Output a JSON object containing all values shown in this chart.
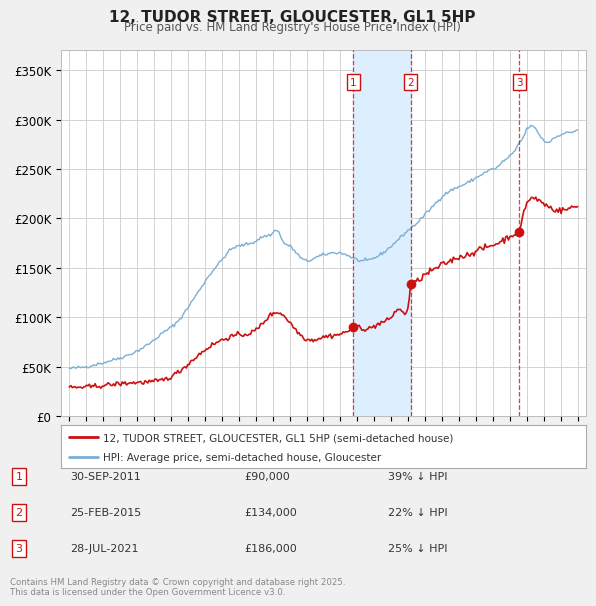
{
  "title": "12, TUDOR STREET, GLOUCESTER, GL1 5HP",
  "subtitle": "Price paid vs. HM Land Registry's House Price Index (HPI)",
  "hpi_color": "#7bafd4",
  "price_color": "#cc1111",
  "background_color": "#f0f0f0",
  "plot_bg_color": "#ffffff",
  "shade_color": "#ddeeff",
  "yticks": [
    0,
    50000,
    100000,
    150000,
    200000,
    250000,
    300000,
    350000
  ],
  "ytick_labels": [
    "£0",
    "£50K",
    "£100K",
    "£150K",
    "£200K",
    "£250K",
    "£300K",
    "£350K"
  ],
  "transactions": [
    {
      "num": 1,
      "date": "30-SEP-2011",
      "date_x": 2011.75,
      "price": 90000,
      "label": "£90,000",
      "hpi_pct": "39% ↓ HPI"
    },
    {
      "num": 2,
      "date": "25-FEB-2015",
      "date_x": 2015.15,
      "price": 134000,
      "label": "£134,000",
      "hpi_pct": "22% ↓ HPI"
    },
    {
      "num": 3,
      "date": "28-JUL-2021",
      "date_x": 2021.57,
      "price": 186000,
      "label": "£186,000",
      "hpi_pct": "25% ↓ HPI"
    }
  ],
  "legend_entries": [
    "12, TUDOR STREET, GLOUCESTER, GL1 5HP (semi-detached house)",
    "HPI: Average price, semi-detached house, Gloucester"
  ],
  "footnote": "Contains HM Land Registry data © Crown copyright and database right 2025.\nThis data is licensed under the Open Government Licence v3.0.",
  "xlim": [
    1994.5,
    2025.5
  ],
  "ylim": [
    0,
    370000
  ]
}
